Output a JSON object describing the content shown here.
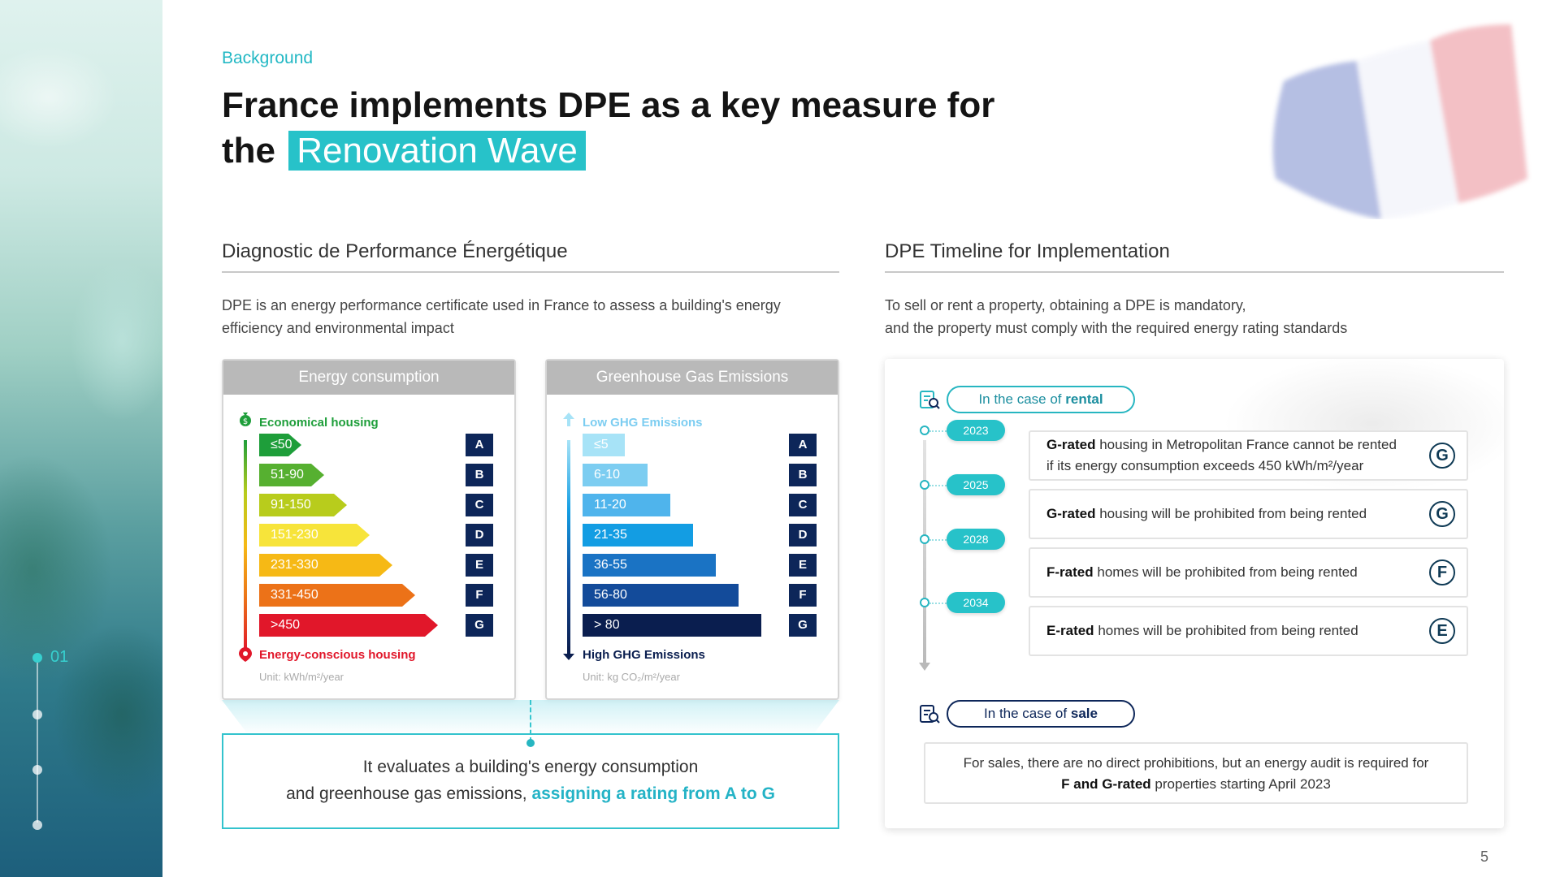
{
  "left_nav": {
    "step_label": "01"
  },
  "header": {
    "eyebrow": "Background",
    "title_line1": "France implements DPE as a key measure for",
    "title_line2_prefix": "the",
    "title_highlight": "Renovation Wave"
  },
  "left_section": {
    "title": "Diagnostic de Performance Énergétique",
    "description_line1": "DPE is an energy performance certificate used in France to assess a building's energy",
    "description_line2": "efficiency and environmental impact",
    "energy_card": {
      "header": "Energy consumption",
      "top_label": "Economical housing",
      "bottom_label": "Energy-conscious housing",
      "unit": "Unit: kWh/m²/year",
      "ratings": [
        {
          "range": "≤50",
          "letter": "A",
          "color": "#1e9e3a",
          "level": 1
        },
        {
          "range": "51-90",
          "letter": "B",
          "color": "#56b030",
          "level": 2
        },
        {
          "range": "91-150",
          "letter": "C",
          "color": "#b8cc1c",
          "level": 3
        },
        {
          "range": "151-230",
          "letter": "D",
          "color": "#f7e43a",
          "level": 4
        },
        {
          "range": "231-330",
          "letter": "E",
          "color": "#f6b915",
          "level": 5
        },
        {
          "range": "331-450",
          "letter": "F",
          "color": "#ec7218",
          "level": 6
        },
        {
          "range": ">450",
          "letter": "G",
          "color": "#e1172a",
          "level": 7
        }
      ]
    },
    "ghg_card": {
      "header": "Greenhouse Gas Emissions",
      "top_label": "Low GHG Emissions",
      "bottom_label": "High GHG Emissions",
      "unit": "Unit: kg CO₂/m²/year",
      "ratings": [
        {
          "range": "≤5",
          "letter": "A",
          "color": "#a7e3f7",
          "level": 1
        },
        {
          "range": "6-10",
          "letter": "B",
          "color": "#7ccdf1",
          "level": 2
        },
        {
          "range": "11-20",
          "letter": "C",
          "color": "#4fb4ec",
          "level": 3
        },
        {
          "range": "21-35",
          "letter": "D",
          "color": "#139de3",
          "level": 4
        },
        {
          "range": "36-55",
          "letter": "E",
          "color": "#1a73c4",
          "level": 5
        },
        {
          "range": "56-80",
          "letter": "F",
          "color": "#134b9a",
          "level": 6
        },
        {
          "range": "> 80",
          "letter": "G",
          "color": "#0a1e4f",
          "level": 7
        }
      ]
    },
    "summary_line1": "It evaluates a building's energy consumption",
    "summary_line2_prefix": "and greenhouse gas emissions,",
    "summary_line2_accent": "assigning a rating from A to G"
  },
  "right_section": {
    "title": "DPE Timeline for Implementation",
    "description_line1": "To sell or rent a property, obtaining a DPE is mandatory,",
    "description_line2": "and the property must comply with the required energy rating standards",
    "rental_pill_prefix": "In the case of",
    "rental_pill_bold": "rental",
    "timeline": [
      {
        "year": "2023",
        "bold": "G-rated",
        "text": "housing in Metropolitan France cannot be rented",
        "text2": "if its energy consumption exceeds 450 kWh/m²/year",
        "grade": "G"
      },
      {
        "year": "2025",
        "bold": "G-rated",
        "text": "housing will be prohibited from being rented",
        "text2": "",
        "grade": "G"
      },
      {
        "year": "2028",
        "bold": "F-rated",
        "text": "homes will be prohibited from being rented",
        "text2": "",
        "grade": "F"
      },
      {
        "year": "2034",
        "bold": "E-rated",
        "text": "homes will be prohibited from being rented",
        "text2": "",
        "grade": "E"
      }
    ],
    "sale_pill_prefix": "In the case of",
    "sale_pill_bold": "sale",
    "sale_line1": "For sales, there are no direct prohibitions, but an energy audit is required for",
    "sale_line2_bold": "F and G-rated",
    "sale_line2_rest": "properties starting April 2023"
  },
  "page_number": "5",
  "colors": {
    "accent": "#27c2c9",
    "navy": "#0d2659"
  }
}
